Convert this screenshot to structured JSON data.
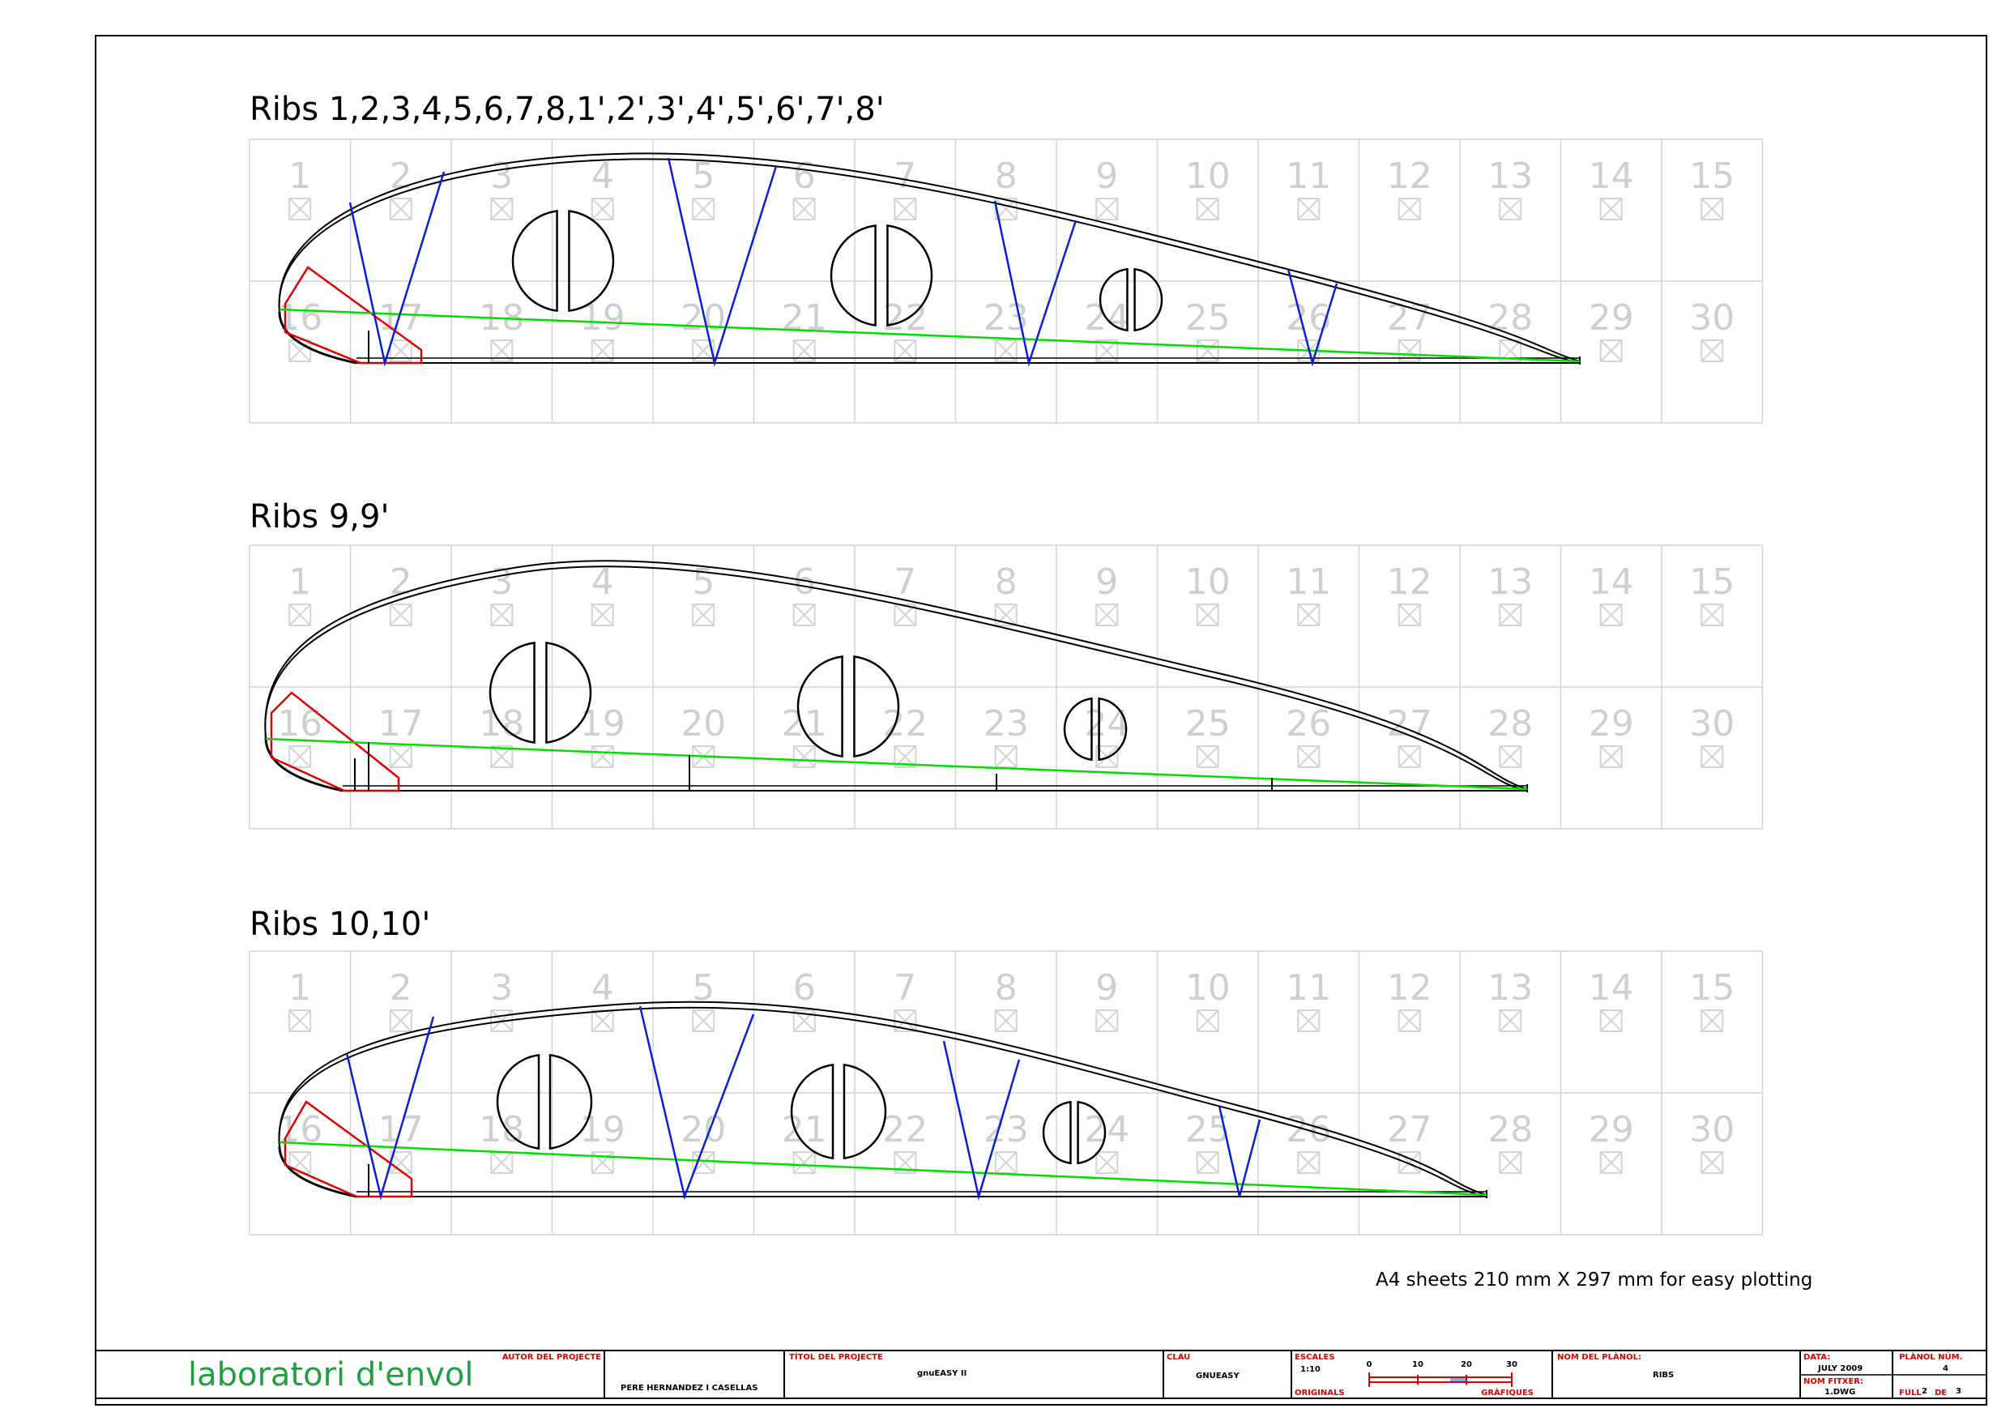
{
  "sections": [
    {
      "title": "Ribs 1,2,3,4,5,6,7,8,1',2',3',4',5',6',7',8'",
      "has_diagonals": true
    },
    {
      "title": "Ribs 9,9'",
      "has_diagonals": false
    },
    {
      "title": "Ribs 10,10'",
      "has_diagonals": true
    }
  ],
  "grid": {
    "top_numbers": [
      "1",
      "2",
      "3",
      "4",
      "5",
      "6",
      "7",
      "8",
      "9",
      "10",
      "11",
      "12",
      "13",
      "14",
      "15"
    ],
    "bottom_numbers": [
      "16",
      "17",
      "18",
      "19",
      "20",
      "21",
      "22",
      "23",
      "24",
      "25",
      "26",
      "27",
      "28",
      "29",
      "30"
    ]
  },
  "note": "A4 sheets 210 mm X 297 mm for easy plotting",
  "title_block": {
    "lab_name": "laboratori d'envol",
    "autor_label": "AUTOR DEL PROJECTE",
    "autor_value": "PERE HERNANDEZ I CASELLAS",
    "titol_label": "TÍTOL DEL PROJECTE",
    "titol_value": "gnuEASY II",
    "clau_label": "CLAU",
    "clau_value": "GNUEASY",
    "escales_label": "ESCALES",
    "escala_value": "1:10",
    "originals_label": "ORIGINALS",
    "grafiques_label": "GRÀFIQUES",
    "scale_ticks": [
      "0",
      "10",
      "20",
      "30"
    ],
    "nom_planol_label": "NOM DEL PLÀNOL:",
    "nom_planol_value": "RIBS",
    "data_label": "DATA:",
    "data_value": "JULY 2009",
    "nom_fitxer_label": "NOM FITXER:",
    "nom_fitxer_value": "1.DWG",
    "planol_num_label": "PLÀNOL NÚM.",
    "planol_num_value": "4",
    "full_label": "FULL",
    "full_value": "2",
    "full_de": "DE",
    "full_total": "3"
  },
  "colors": {
    "grid": "#d4d4d4",
    "grid_numbers": "#cfcfcf",
    "outline": "#000000",
    "diagonals": "#0a1ed6",
    "leading_edge": "#e00000",
    "chord_line": "#00e000",
    "title_block_red": "#e00000",
    "lab_name": "#20a040"
  }
}
